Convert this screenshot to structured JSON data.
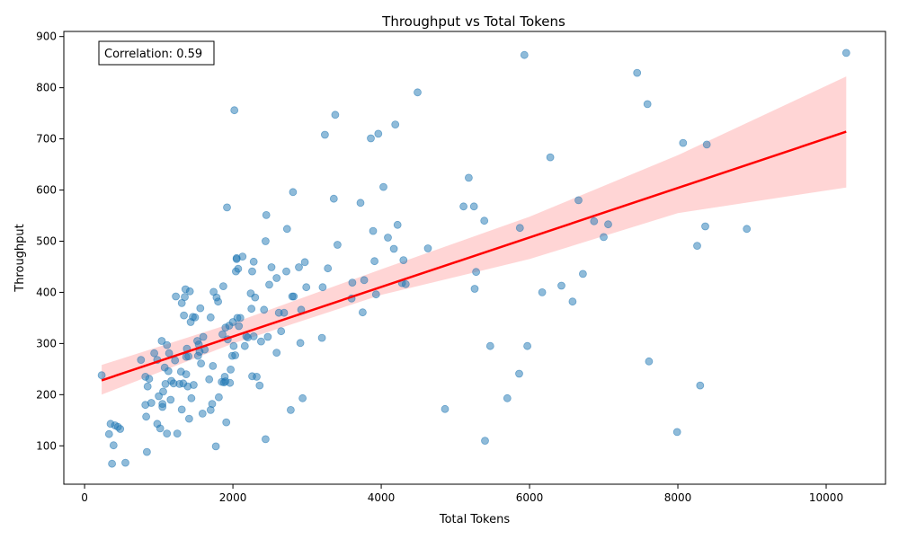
{
  "chart_data": {
    "type": "scatter",
    "title": "Throughput vs Total Tokens",
    "xlabel": "Total Tokens",
    "ylabel": "Throughput",
    "xlim": [
      -280,
      10800
    ],
    "ylim": [
      25,
      910
    ],
    "xticks": [
      0,
      2000,
      4000,
      6000,
      8000,
      10000
    ],
    "yticks": [
      100,
      200,
      300,
      400,
      500,
      600,
      700,
      800,
      900
    ],
    "grid": false,
    "annotation": "Correlation: 0.59",
    "point_color": "#1f77b4",
    "fit_color": "#ff0000",
    "band_color": "#ffb3b3",
    "fit_line": {
      "x": [
        230,
        10270
      ],
      "y": [
        228,
        714
      ]
    },
    "confidence_band": {
      "x": [
        230,
        2000,
        4000,
        6000,
        8000,
        10270
      ],
      "upper": [
        258,
        340,
        445,
        548,
        668,
        822
      ],
      "lower": [
        200,
        300,
        395,
        465,
        555,
        605
      ]
    },
    "points": [
      [
        230,
        238
      ],
      [
        330,
        123
      ],
      [
        350,
        143
      ],
      [
        370,
        65
      ],
      [
        390,
        101
      ],
      [
        410,
        140
      ],
      [
        450,
        137
      ],
      [
        480,
        133
      ],
      [
        550,
        67
      ],
      [
        760,
        268
      ],
      [
        820,
        235
      ],
      [
        820,
        180
      ],
      [
        830,
        157
      ],
      [
        840,
        88
      ],
      [
        850,
        216
      ],
      [
        870,
        231
      ],
      [
        900,
        184
      ],
      [
        940,
        281
      ],
      [
        980,
        268
      ],
      [
        980,
        143
      ],
      [
        1000,
        197
      ],
      [
        1020,
        134
      ],
      [
        1040,
        305
      ],
      [
        1050,
        182
      ],
      [
        1050,
        176
      ],
      [
        1060,
        206
      ],
      [
        1080,
        253
      ],
      [
        1090,
        221
      ],
      [
        1110,
        297
      ],
      [
        1110,
        124
      ],
      [
        1130,
        246
      ],
      [
        1140,
        281
      ],
      [
        1160,
        190
      ],
      [
        1170,
        227
      ],
      [
        1200,
        222
      ],
      [
        1220,
        267
      ],
      [
        1230,
        392
      ],
      [
        1250,
        124
      ],
      [
        1280,
        221
      ],
      [
        1300,
        245
      ],
      [
        1310,
        379
      ],
      [
        1310,
        171
      ],
      [
        1330,
        222
      ],
      [
        1340,
        355
      ],
      [
        1350,
        391
      ],
      [
        1360,
        406
      ],
      [
        1370,
        240
      ],
      [
        1370,
        274
      ],
      [
        1380,
        290
      ],
      [
        1390,
        216
      ],
      [
        1400,
        275
      ],
      [
        1410,
        153
      ],
      [
        1420,
        402
      ],
      [
        1430,
        342
      ],
      [
        1440,
        193
      ],
      [
        1460,
        352
      ],
      [
        1470,
        219
      ],
      [
        1490,
        351
      ],
      [
        1520,
        305
      ],
      [
        1530,
        276
      ],
      [
        1540,
        298
      ],
      [
        1550,
        284
      ],
      [
        1560,
        369
      ],
      [
        1570,
        261
      ],
      [
        1590,
        163
      ],
      [
        1600,
        313
      ],
      [
        1620,
        288
      ],
      [
        1680,
        230
      ],
      [
        1700,
        351
      ],
      [
        1700,
        170
      ],
      [
        1720,
        182
      ],
      [
        1730,
        256
      ],
      [
        1740,
        401
      ],
      [
        1770,
        99
      ],
      [
        1780,
        390
      ],
      [
        1800,
        382
      ],
      [
        1810,
        195
      ],
      [
        1850,
        225
      ],
      [
        1860,
        318
      ],
      [
        1870,
        412
      ],
      [
        1880,
        224
      ],
      [
        1890,
        235
      ],
      [
        1900,
        331
      ],
      [
        1900,
        226
      ],
      [
        1910,
        146
      ],
      [
        1920,
        566
      ],
      [
        1930,
        308
      ],
      [
        1950,
        335
      ],
      [
        1960,
        223
      ],
      [
        1970,
        249
      ],
      [
        1990,
        276
      ],
      [
        2000,
        342
      ],
      [
        2010,
        295
      ],
      [
        2020,
        756
      ],
      [
        2030,
        277
      ],
      [
        2040,
        441
      ],
      [
        2050,
        467
      ],
      [
        2050,
        465
      ],
      [
        2060,
        350
      ],
      [
        2070,
        446
      ],
      [
        2080,
        334
      ],
      [
        2100,
        350
      ],
      [
        2130,
        470
      ],
      [
        2160,
        295
      ],
      [
        2180,
        314
      ],
      [
        2200,
        312
      ],
      [
        2240,
        398
      ],
      [
        2250,
        368
      ],
      [
        2260,
        441
      ],
      [
        2260,
        236
      ],
      [
        2280,
        314
      ],
      [
        2280,
        460
      ],
      [
        2300,
        390
      ],
      [
        2320,
        235
      ],
      [
        2360,
        218
      ],
      [
        2380,
        304
      ],
      [
        2420,
        366
      ],
      [
        2440,
        113
      ],
      [
        2440,
        500
      ],
      [
        2450,
        551
      ],
      [
        2470,
        313
      ],
      [
        2490,
        415
      ],
      [
        2520,
        449
      ],
      [
        2590,
        428
      ],
      [
        2590,
        282
      ],
      [
        2620,
        360
      ],
      [
        2650,
        324
      ],
      [
        2690,
        360
      ],
      [
        2720,
        441
      ],
      [
        2730,
        524
      ],
      [
        2780,
        170
      ],
      [
        2800,
        392
      ],
      [
        2810,
        596
      ],
      [
        2820,
        392
      ],
      [
        2890,
        449
      ],
      [
        2910,
        301
      ],
      [
        2920,
        366
      ],
      [
        2940,
        193
      ],
      [
        2970,
        459
      ],
      [
        2990,
        410
      ],
      [
        3200,
        311
      ],
      [
        3210,
        410
      ],
      [
        3240,
        708
      ],
      [
        3280,
        447
      ],
      [
        3360,
        583
      ],
      [
        3380,
        747
      ],
      [
        3410,
        493
      ],
      [
        3600,
        388
      ],
      [
        3610,
        419
      ],
      [
        3720,
        575
      ],
      [
        3750,
        361
      ],
      [
        3770,
        424
      ],
      [
        3860,
        701
      ],
      [
        3890,
        520
      ],
      [
        3910,
        461
      ],
      [
        3930,
        396
      ],
      [
        3960,
        710
      ],
      [
        4030,
        606
      ],
      [
        4090,
        507
      ],
      [
        4170,
        485
      ],
      [
        4190,
        728
      ],
      [
        4220,
        532
      ],
      [
        4280,
        418
      ],
      [
        4300,
        463
      ],
      [
        4330,
        416
      ],
      [
        4490,
        791
      ],
      [
        4630,
        486
      ],
      [
        4860,
        172
      ],
      [
        5110,
        568
      ],
      [
        5180,
        624
      ],
      [
        5250,
        568
      ],
      [
        5260,
        407
      ],
      [
        5280,
        440
      ],
      [
        5390,
        540
      ],
      [
        5400,
        110
      ],
      [
        5470,
        295
      ],
      [
        5700,
        193
      ],
      [
        5860,
        241
      ],
      [
        5870,
        526
      ],
      [
        5930,
        864
      ],
      [
        5970,
        295
      ],
      [
        6170,
        400
      ],
      [
        6280,
        664
      ],
      [
        6430,
        413
      ],
      [
        6580,
        382
      ],
      [
        6660,
        580
      ],
      [
        6720,
        436
      ],
      [
        6870,
        539
      ],
      [
        7000,
        508
      ],
      [
        7060,
        533
      ],
      [
        7450,
        829
      ],
      [
        7590,
        768
      ],
      [
        7610,
        265
      ],
      [
        7990,
        127
      ],
      [
        8070,
        692
      ],
      [
        8260,
        491
      ],
      [
        8300,
        218
      ],
      [
        8370,
        529
      ],
      [
        8390,
        689
      ],
      [
        8930,
        524
      ],
      [
        10270,
        868
      ]
    ]
  }
}
